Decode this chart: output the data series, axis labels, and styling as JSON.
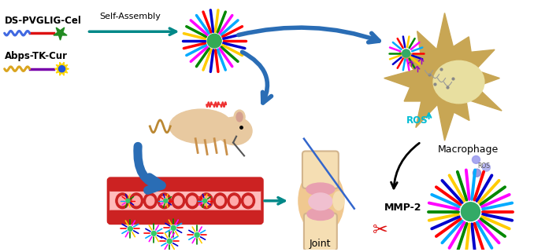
{
  "bg_color": "#ffffff",
  "label1": "DS-PVGLIG-Cel",
  "label2": "Abps-TK-Cur",
  "self_assembly_text": "Self-Assembly",
  "joint_text": "Joint",
  "macrophage_text": "Macrophage",
  "mmp2_text": "MMP-2",
  "ros_text": "ROS",
  "wave_color1": "#4169e1",
  "wave_color2": "#daa520",
  "line_color1": "#dd1111",
  "line_color2": "#7700aa",
  "star_color": "#228b22",
  "arrow_color": "#2a6db5",
  "np_colors": [
    "#ff0000",
    "#0000cc",
    "#ffcc00",
    "#008800",
    "#ff00ff",
    "#00aaff"
  ],
  "macrophage_color": "#c8a654",
  "ros_label_color": "#00bcd4",
  "teal_arrow": "#008888"
}
